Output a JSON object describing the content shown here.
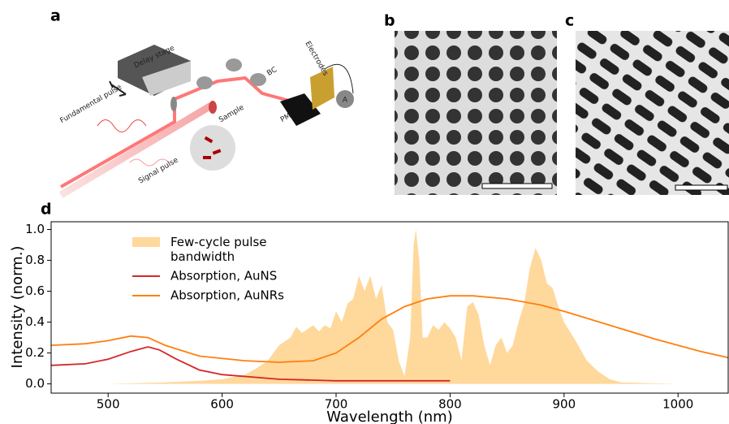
{
  "panel_labels": [
    "a",
    "b",
    "c",
    "d"
  ],
  "diagram": {
    "labels": [
      "Delay stage",
      "Fundamental pulse",
      "Signal pulse",
      "Sample",
      "BC",
      "Electrodes",
      "PM",
      "A"
    ]
  },
  "chart_data": {
    "type": "line",
    "xlabel": "Wavelength (nm)",
    "ylabel": "Intensity (norm.)",
    "xlim": [
      450,
      1044
    ],
    "ylim": [
      -0.06,
      1.05
    ],
    "xticks": [
      500,
      600,
      700,
      800,
      900,
      1000
    ],
    "yticks": [
      {
        "value": 0,
        "label": "0.0"
      },
      0.2,
      0.4,
      0.6,
      0.8,
      {
        "value": 1,
        "label": "1.0"
      }
    ],
    "legend": "upper left",
    "series": [
      {
        "name": "Few-cycle pulse bandwidth",
        "color": "#ffd89c",
        "area": true,
        "x": [
          450,
          500,
          550,
          580,
          600,
          620,
          630,
          640,
          650,
          660,
          665,
          670,
          680,
          685,
          690,
          695,
          700,
          705,
          710,
          715,
          720,
          725,
          730,
          735,
          740,
          745,
          750,
          755,
          760,
          765,
          768,
          770,
          773,
          776,
          780,
          785,
          790,
          795,
          800,
          805,
          810,
          815,
          820,
          825,
          830,
          835,
          840,
          845,
          850,
          855,
          860,
          865,
          870,
          875,
          880,
          885,
          890,
          895,
          900,
          910,
          920,
          930,
          940,
          950,
          1000,
          1044
        ],
        "values": [
          0,
          0,
          0.01,
          0.02,
          0.03,
          0.06,
          0.1,
          0.15,
          0.25,
          0.3,
          0.37,
          0.33,
          0.38,
          0.34,
          0.38,
          0.36,
          0.47,
          0.4,
          0.52,
          0.55,
          0.7,
          0.6,
          0.7,
          0.55,
          0.64,
          0.4,
          0.35,
          0.15,
          0.05,
          0.3,
          0.9,
          1.0,
          0.8,
          0.3,
          0.3,
          0.38,
          0.35,
          0.4,
          0.36,
          0.3,
          0.15,
          0.5,
          0.53,
          0.45,
          0.25,
          0.12,
          0.25,
          0.3,
          0.2,
          0.25,
          0.4,
          0.52,
          0.75,
          0.88,
          0.8,
          0.65,
          0.62,
          0.5,
          0.4,
          0.28,
          0.15,
          0.08,
          0.03,
          0.01,
          0,
          0
        ]
      },
      {
        "name": "Absorption, AuNS",
        "color": "#d62728",
        "x": [
          450,
          480,
          500,
          520,
          535,
          545,
          560,
          580,
          600,
          650,
          700,
          750,
          800
        ],
        "values": [
          0.12,
          0.13,
          0.16,
          0.21,
          0.24,
          0.22,
          0.16,
          0.09,
          0.06,
          0.03,
          0.02,
          0.02,
          0.02
        ]
      },
      {
        "name": "Absorption, AuNRs",
        "color": "#ff7f0e",
        "x": [
          450,
          480,
          500,
          520,
          535,
          550,
          580,
          620,
          650,
          680,
          700,
          720,
          740,
          760,
          780,
          800,
          820,
          850,
          880,
          900,
          940,
          980,
          1000,
          1020,
          1044
        ],
        "values": [
          0.25,
          0.26,
          0.28,
          0.31,
          0.3,
          0.25,
          0.18,
          0.15,
          0.14,
          0.15,
          0.2,
          0.3,
          0.42,
          0.5,
          0.55,
          0.57,
          0.57,
          0.55,
          0.51,
          0.47,
          0.38,
          0.29,
          0.25,
          0.21,
          0.17
        ]
      }
    ]
  }
}
